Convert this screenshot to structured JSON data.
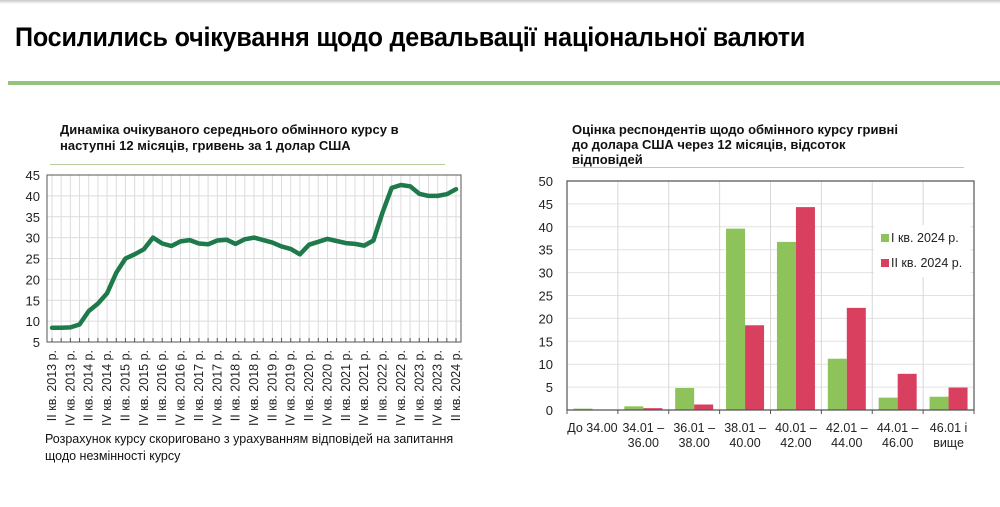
{
  "page": {
    "title": "Посилились очікування щодо девальвації національної валюти",
    "accent_color": "#92c47b"
  },
  "left_chart": {
    "title_line1": "Динаміка очікуваного середнього обмінного курсу в",
    "title_line2": "наступні 12 місяців, гривень за 1 долар США",
    "footnote_line1": "Розрахунок курсу скориговано з урахуванням відповідей на запитання",
    "footnote_line2": "щодо незмінності курсу"
  },
  "right_chart": {
    "title_line1": "Оцінка респондентів щодо обмінного курсу гривні",
    "title_line2": "до долара США через 12 місяців, відсоток",
    "title_line3": "відповідей",
    "legend": [
      "I кв. 2024 р.",
      "II кв. 2024 р."
    ]
  },
  "chart_data": [
    {
      "type": "line",
      "title": "Динаміка очікуваного середнього обмінного курсу в наступні 12 місяців, гривень за 1 долар США",
      "xlabel": "",
      "ylabel": "",
      "ylim": [
        5,
        45
      ],
      "yticks": [
        5,
        10,
        15,
        20,
        25,
        30,
        35,
        40,
        45
      ],
      "grid": true,
      "line_color": "#1e7a4a",
      "x_tick_labels": [
        "II кв. 2013 р.",
        "IV кв. 2013 р.",
        "II кв. 2014 р.",
        "IV кв. 2014 р.",
        "II кв. 2015 р.",
        "IV кв. 2015 р.",
        "II кв. 2016 р.",
        "IV кв. 2016 р.",
        "II кв. 2017 р.",
        "IV кв. 2017 р.",
        "II кв. 2018 р.",
        "IV кв. 2018 р.",
        "II кв. 2019 р.",
        "IV кв. 2019 р.",
        "II кв. 2020 р.",
        "IV кв. 2020 р.",
        "II кв. 2021 р.",
        "IV кв. 2021 р.",
        "II кв. 2022 р.",
        "IV кв. 2022 р.",
        "II кв. 2023 р.",
        "IV кв. 2023 р.",
        "II кв. 2024 р."
      ],
      "x": [
        "II 2013",
        "III 2013",
        "IV 2013",
        "I 2014",
        "II 2014",
        "III 2014",
        "IV 2014",
        "I 2015",
        "II 2015",
        "III 2015",
        "IV 2015",
        "I 2016",
        "II 2016",
        "III 2016",
        "IV 2016",
        "I 2017",
        "II 2017",
        "III 2017",
        "IV 2017",
        "I 2018",
        "II 2018",
        "III 2018",
        "IV 2018",
        "I 2019",
        "II 2019",
        "III 2019",
        "IV 2019",
        "I 2020",
        "II 2020",
        "III 2020",
        "IV 2020",
        "I 2021",
        "II 2021",
        "III 2021",
        "IV 2021",
        "I 2022",
        "II 2022",
        "III 2022",
        "IV 2022",
        "I 2023",
        "II 2023",
        "III 2023",
        "IV 2023",
        "I 2024",
        "II 2024"
      ],
      "values": [
        8.4,
        8.4,
        8.5,
        9.2,
        12.4,
        14.2,
        16.7,
        21.6,
        25.0,
        26.0,
        27.2,
        30.0,
        28.6,
        28.0,
        29.1,
        29.4,
        28.6,
        28.4,
        29.3,
        29.5,
        28.5,
        29.6,
        30.0,
        29.4,
        28.8,
        27.9,
        27.3,
        26.0,
        28.3,
        29.0,
        29.7,
        29.2,
        28.7,
        28.5,
        28.1,
        29.3,
        36.0,
        41.9,
        42.6,
        42.3,
        40.5,
        40.0,
        40.0,
        40.4,
        41.6
      ]
    },
    {
      "type": "bar",
      "title": "Оцінка респондентів щодо обмінного курсу гривні до долара США через 12 місяців, відсоток відповідей",
      "xlabel": "",
      "ylabel": "",
      "ylim": [
        0,
        50
      ],
      "yticks": [
        0,
        5,
        10,
        15,
        20,
        25,
        30,
        35,
        40,
        45,
        50
      ],
      "grid": true,
      "legend_position": "upper right (inside)",
      "categories": [
        [
          "До 34.00",
          ""
        ],
        [
          "34.01 –",
          "36.00"
        ],
        [
          "36.01 –",
          "38.00"
        ],
        [
          "38.01 –",
          "40.00"
        ],
        [
          "40.01 –",
          "42.00"
        ],
        [
          "42.01 –",
          "44.00"
        ],
        [
          "44.01 –",
          "46.00"
        ],
        [
          "46.01 і",
          "вище"
        ]
      ],
      "series": [
        {
          "name": "I кв. 2024 р.",
          "color": "#8dc35a",
          "values": [
            0.3,
            0.8,
            4.8,
            39.6,
            36.7,
            11.2,
            2.7,
            2.9
          ]
        },
        {
          "name": "II кв. 2024 р.",
          "color": "#d9405f",
          "values": [
            0.0,
            0.4,
            1.2,
            18.5,
            44.3,
            22.3,
            7.9,
            4.9
          ]
        }
      ]
    }
  ]
}
